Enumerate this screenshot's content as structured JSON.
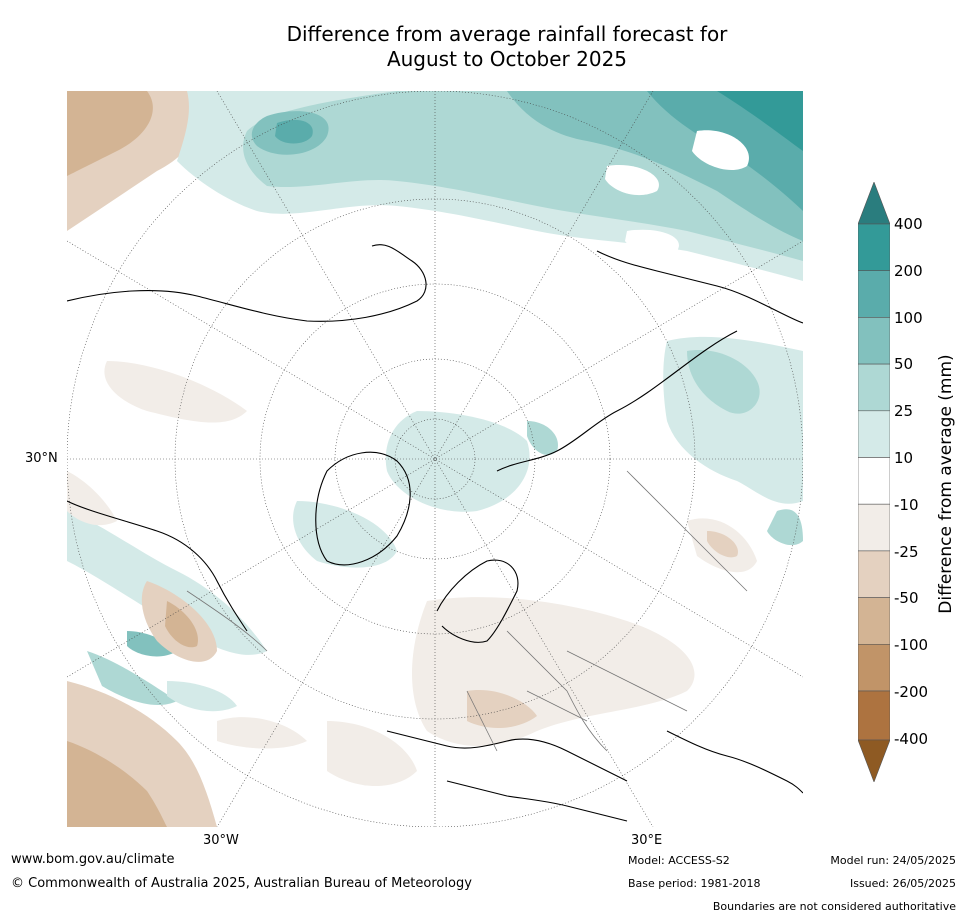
{
  "title_line1": "Difference from average rainfall forecast for",
  "title_line2": "August to October 2025",
  "map_labels": {
    "lat_30n": "30°N",
    "lon_30w": "30°W",
    "lon_30e": "30°E"
  },
  "colorbar": {
    "label": "Difference from average (mm)",
    "ticks": [
      "400",
      "200",
      "100",
      "50",
      "25",
      "10",
      "-10",
      "-25",
      "-50",
      "-100",
      "-200",
      "-400"
    ],
    "colors": {
      "above_400": "#2a7d7e",
      "200_400": "#339a98",
      "100_200": "#5aacab",
      "50_100": "#82c1be",
      "25_50": "#aed8d4",
      "10_25": "#d4eae8",
      "neutral": "#ffffff",
      "m10_m25": "#f2ede8",
      "m25_m50": "#e4d1c0",
      "m50_m100": "#d3b494",
      "m100_m200": "#c19468",
      "m200_m400": "#ad7340",
      "below_m400": "#8e5a23"
    }
  },
  "footer": {
    "website": "www.bom.gov.au/climate",
    "copyright": "© Commonwealth of Australia 2025, Australian Bureau of Meteorology",
    "model": "Model: ACCESS-S2",
    "base_period": "Base period: 1981-2018",
    "model_run": "Model run: 24/05/2025",
    "issued": "Issued: 26/05/2025",
    "disclaimer": "Boundaries are not considered authoritative"
  }
}
